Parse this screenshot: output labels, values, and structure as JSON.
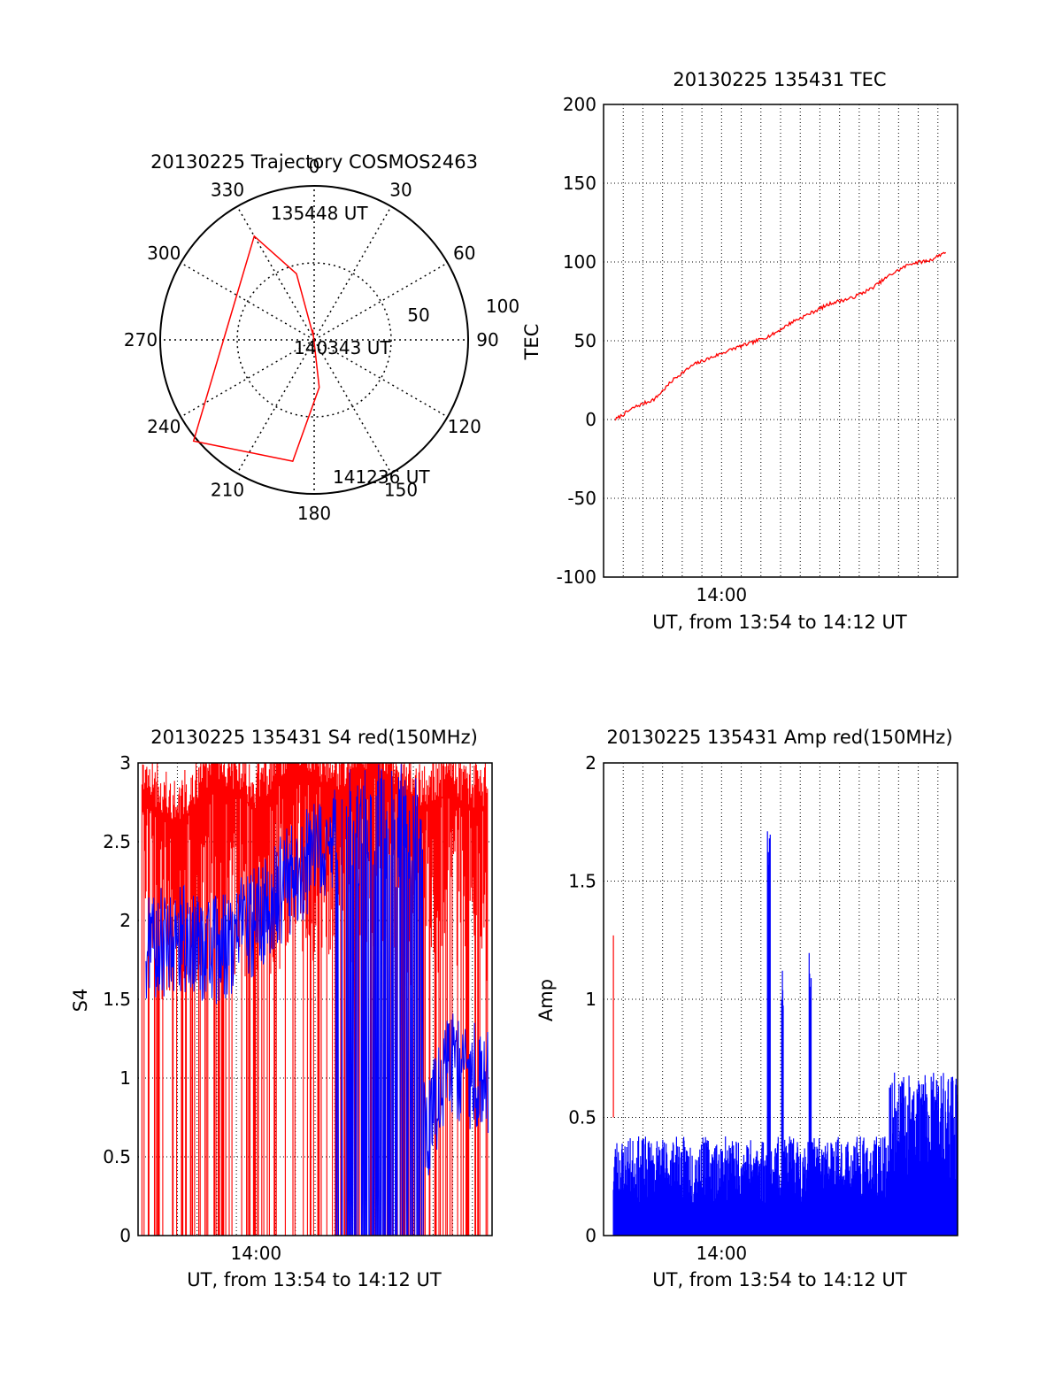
{
  "chart_data": [
    {
      "type": "polar",
      "title": "20130225 Trajectory COSMOS2463",
      "azimuth_labels": [
        "0",
        "30",
        "60",
        "90",
        "120",
        "150",
        "180",
        "210",
        "240",
        "270",
        "300",
        "330"
      ],
      "radial_labels": [
        "50",
        "100"
      ],
      "series": [
        {
          "color": "#ff0000",
          "points": [
            {
              "az": 348,
              "el": 88
            },
            {
              "az": 345,
              "el": 50
            },
            {
              "az": 330,
              "el": 20
            },
            {
              "az": 230,
              "el": -2
            },
            {
              "az": 190,
              "el": 18
            },
            {
              "az": 174,
              "el": 62
            },
            {
              "az": 172,
              "el": 96
            }
          ]
        }
      ],
      "annotations": [
        {
          "text": "135448 UT",
          "az": 340,
          "el": 100
        },
        {
          "text": "140343 UT",
          "az": 102,
          "el": 8
        },
        {
          "text": "141236 UT",
          "az": 165,
          "el": 110
        }
      ]
    },
    {
      "type": "line",
      "title": "20130225 135431 TEC",
      "xlabel": "UT, from 13:54 to 14:12 UT",
      "ylabel": "TEC",
      "ylim": [
        -100,
        200
      ],
      "yticks": [
        "-100",
        "-50",
        "0",
        "50",
        "100",
        "150",
        "200"
      ],
      "xticks": [
        "14:00"
      ],
      "grid": true,
      "series": [
        {
          "color": "#ff0000",
          "x": [
            0,
            1,
            2,
            3,
            4,
            5,
            6,
            7,
            8,
            9,
            10,
            11,
            12,
            13,
            14,
            15,
            16,
            17
          ],
          "y": [
            0,
            8,
            13,
            26,
            35,
            40,
            45,
            49,
            54,
            62,
            68,
            74,
            77,
            83,
            92,
            99,
            101,
            108
          ]
        }
      ]
    },
    {
      "type": "line",
      "title": "20130225 135431 S4 red(150MHz)",
      "xlabel": "UT, from 13:54 to 14:12 UT",
      "ylabel": "S4",
      "ylim": [
        0,
        3
      ],
      "yticks": [
        "0",
        "0.5",
        "1",
        "1.5",
        "2",
        "2.5",
        "3"
      ],
      "xticks": [
        "14:00"
      ],
      "grid": true,
      "series": [
        {
          "color": "#ff0000",
          "x": [
            0,
            2,
            4,
            6,
            8,
            10,
            12,
            14,
            16,
            17
          ],
          "y": [
            2.8,
            2.6,
            2.9,
            2.7,
            3.0,
            2.8,
            3.0,
            2.7,
            2.8,
            2.7
          ]
        },
        {
          "color": "#0000ff",
          "x": [
            0,
            2,
            4,
            6,
            8,
            10,
            12,
            14,
            16,
            17
          ],
          "y": [
            1.8,
            1.9,
            1.8,
            2.0,
            2.3,
            2.5,
            1.0,
            0.5,
            1.1,
            1.0
          ]
        }
      ]
    },
    {
      "type": "line",
      "title": "20130225 135431 Amp red(150MHz)",
      "xlabel": "UT, from 13:54 to 14:12 UT",
      "ylabel": "Amp",
      "ylim": [
        0,
        2
      ],
      "yticks": [
        "0",
        "0.5",
        "1",
        "1.5",
        "2"
      ],
      "xticks": [
        "14:00"
      ],
      "grid": true,
      "series": [
        {
          "color": "#0000ff",
          "x": [
            0,
            2,
            4,
            6,
            8,
            10,
            12,
            14,
            16,
            17
          ],
          "y": [
            0.35,
            0.33,
            0.3,
            0.32,
            0.35,
            1.7,
            0.9,
            0.25,
            0.55,
            0.6
          ]
        },
        {
          "color": "#ff0000",
          "x": [
            0.5
          ],
          "y": [
            1.27
          ]
        }
      ]
    }
  ]
}
